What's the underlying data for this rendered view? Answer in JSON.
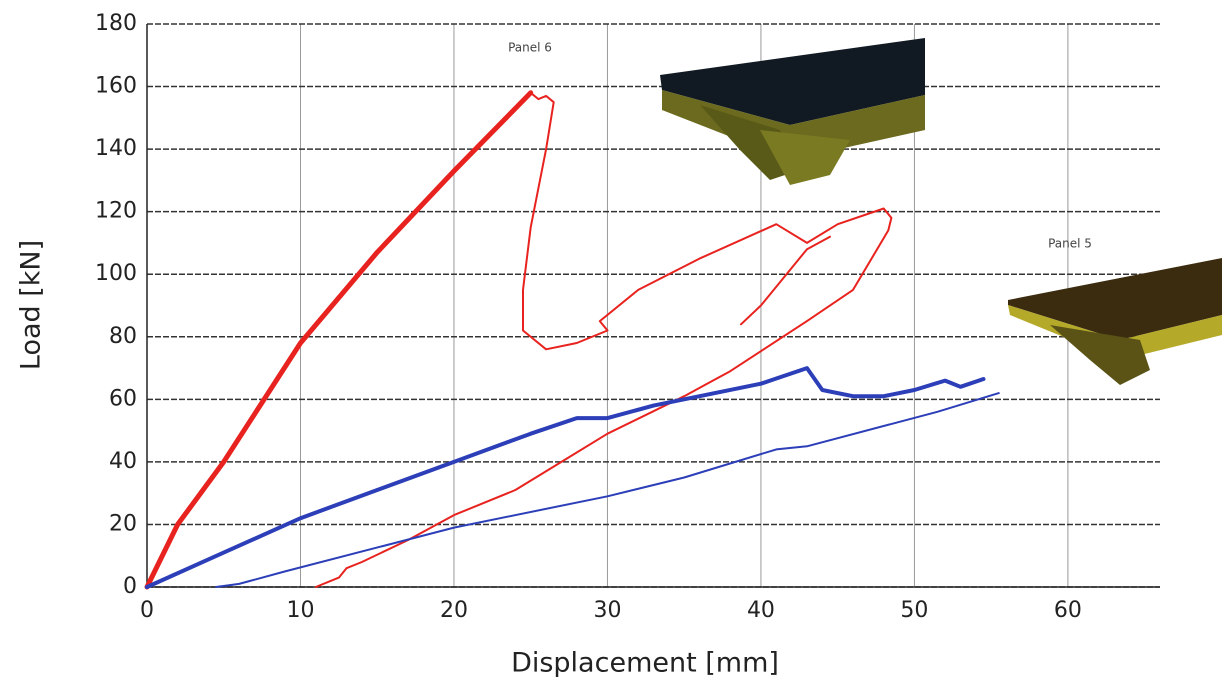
{
  "chart_data": {
    "type": "line",
    "x_label": "Displacement [mm]",
    "y_label": "Load [kN]",
    "annotations": [
      "Panel 6",
      "Panel 5"
    ],
    "xlim": [
      0,
      66
    ],
    "ylim": [
      0,
      180
    ],
    "xticks": [
      0,
      10,
      20,
      30,
      40,
      50,
      60
    ],
    "yticks": [
      0,
      20,
      40,
      60,
      80,
      100,
      120,
      140,
      160,
      180
    ],
    "grid": true,
    "series": [
      {
        "color": "#e8231f",
        "line_width": 5,
        "x": [
          0,
          2,
          5,
          10,
          15,
          20,
          23,
          25
        ],
        "values": [
          0,
          20,
          40,
          78,
          107,
          133,
          148,
          158
        ]
      },
      {
        "color": "#e8231f",
        "line_width": 2,
        "x": [
          25,
          25.5,
          26,
          26.5,
          26,
          25,
          24.5,
          24.5,
          26,
          28,
          30,
          29.5,
          32,
          36,
          41,
          43,
          45,
          48,
          48.5,
          48.3,
          46,
          43,
          38,
          35,
          30,
          27,
          24,
          20,
          17,
          14,
          13,
          12.5,
          11,
          null,
          38.7,
          40,
          43,
          44.5
        ],
        "values": [
          158,
          156,
          157,
          155,
          140,
          115,
          95,
          82,
          76,
          78,
          82,
          85,
          95,
          105,
          116,
          110,
          116,
          121,
          118,
          114,
          95,
          85,
          69,
          61,
          49,
          40,
          31,
          23,
          15,
          8,
          6,
          3,
          0,
          null,
          84,
          90,
          108,
          112
        ]
      },
      {
        "color": "#2c3fb8",
        "line_width": 4,
        "x": [
          0,
          5,
          10,
          15,
          20,
          25,
          28,
          30,
          33,
          35,
          40,
          43,
          44,
          46,
          48,
          50,
          52,
          53,
          54.5
        ],
        "values": [
          0,
          11,
          22,
          31,
          40,
          49,
          54,
          54,
          58,
          60,
          65,
          70,
          63,
          61,
          61,
          63,
          66,
          64,
          66.5
        ]
      },
      {
        "color": "#2c3fb8",
        "line_width": 2,
        "x": [
          4.5,
          6,
          9,
          20,
          30,
          35,
          41,
          43,
          51.5,
          55.5
        ],
        "values": [
          0,
          1,
          5,
          19,
          29,
          35,
          44,
          45,
          56,
          62
        ]
      }
    ]
  }
}
